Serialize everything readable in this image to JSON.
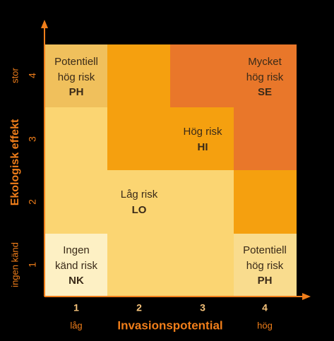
{
  "y_axis": {
    "title": "Ekologisk effekt",
    "high_label": "stor",
    "low_label": "ingen känd",
    "ticks": [
      "1",
      "2",
      "3",
      "4"
    ]
  },
  "x_axis": {
    "title": "Invasionspotential",
    "low_label": "låg",
    "high_label": "hög",
    "ticks": [
      "1",
      "2",
      "3",
      "4"
    ]
  },
  "regions": [
    {
      "lines": [
        "Potentiell",
        "hög risk"
      ],
      "code": "PH"
    },
    {
      "lines": [
        "Mycket",
        "hög risk"
      ],
      "code": "SE"
    },
    {
      "lines": [
        "Hög risk"
      ],
      "code": "HI"
    },
    {
      "lines": [
        "Låg risk"
      ],
      "code": "LO"
    },
    {
      "lines": [
        "Ingen",
        "känd risk"
      ],
      "code": "NK"
    },
    {
      "lines": [
        "Potentiell",
        "hög risk"
      ],
      "code": "PH"
    }
  ]
}
